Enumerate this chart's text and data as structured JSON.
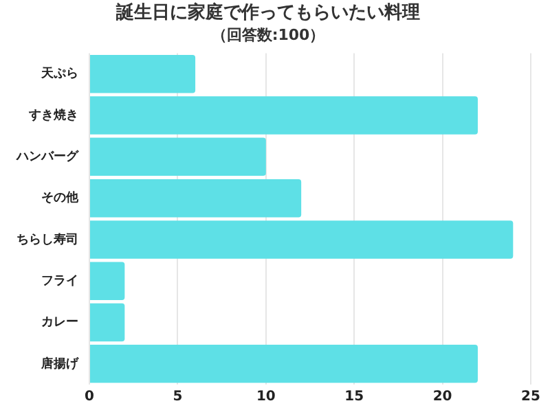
{
  "chart_data": {
    "type": "bar",
    "orientation": "horizontal",
    "title": "誕生日に家庭で作ってもらいたい料理",
    "subtitle": "（回答数:100）",
    "categories": [
      "天ぷら",
      "すき焼き",
      "ハンバーグ",
      "その他",
      "ちらし寿司",
      "フライ",
      "カレー",
      "唐揚げ"
    ],
    "values": [
      6,
      22,
      10,
      12,
      24,
      2,
      2,
      22
    ],
    "color": "#5ee0e6",
    "xlim": [
      0,
      25
    ],
    "xticks": [
      0,
      5,
      10,
      15,
      20,
      25
    ],
    "grid": "x"
  }
}
